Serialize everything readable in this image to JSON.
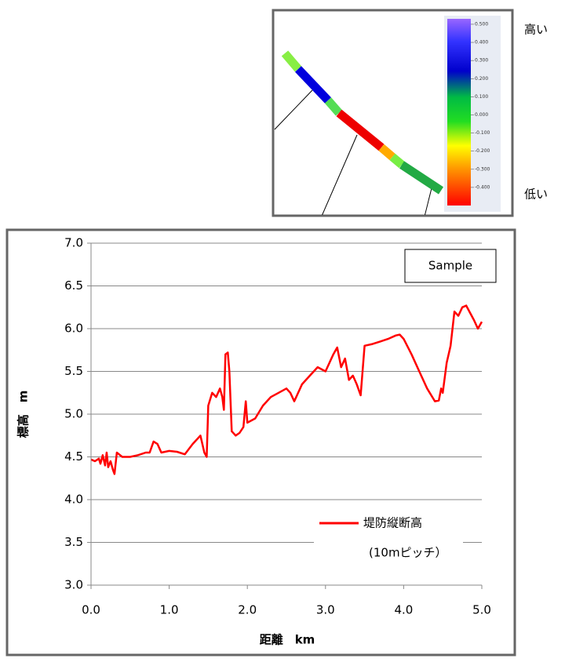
{
  "chart_data": {
    "type": "line",
    "ylabel": "標高　m",
    "xlabel": "距離　km",
    "legend_box": "Sample",
    "legend_note": "(10mピッチ）",
    "xlim": [
      0,
      5
    ],
    "ylim": [
      3,
      7
    ],
    "xticks": [
      {
        "value": 0,
        "label": "0.0"
      },
      {
        "value": 1,
        "label": "1.0"
      },
      {
        "value": 2,
        "label": "2.0"
      },
      {
        "value": 3,
        "label": "3.0"
      },
      {
        "value": 4,
        "label": "4.0"
      },
      {
        "value": 5,
        "label": "5.0"
      }
    ],
    "yticks": [
      {
        "value": 3,
        "label": "3.0"
      },
      {
        "value": 3.5,
        "label": "3.5"
      },
      {
        "value": 4,
        "label": "4.0"
      },
      {
        "value": 4.5,
        "label": "4.5"
      },
      {
        "value": 5,
        "label": "5.0"
      },
      {
        "value": 5.5,
        "label": "5.5"
      },
      {
        "value": 6,
        "label": "6.0"
      },
      {
        "value": 6.5,
        "label": "6.5"
      },
      {
        "value": 7,
        "label": "7.0"
      }
    ],
    "grid": true,
    "x": [
      0,
      0.05,
      0.1,
      0.12,
      0.15,
      0.18,
      0.2,
      0.22,
      0.25,
      0.28,
      0.3,
      0.33,
      0.4,
      0.5,
      0.6,
      0.7,
      0.75,
      0.8,
      0.85,
      0.9,
      1.0,
      1.1,
      1.2,
      1.3,
      1.4,
      1.45,
      1.48,
      1.5,
      1.55,
      1.6,
      1.65,
      1.68,
      1.7,
      1.72,
      1.75,
      1.77,
      1.8,
      1.85,
      1.9,
      1.95,
      1.98,
      2.0,
      2.1,
      2.2,
      2.3,
      2.4,
      2.5,
      2.55,
      2.6,
      2.7,
      2.8,
      2.9,
      3.0,
      3.1,
      3.15,
      3.2,
      3.25,
      3.3,
      3.35,
      3.4,
      3.45,
      3.5,
      3.6,
      3.7,
      3.8,
      3.9,
      3.95,
      4.0,
      4.1,
      4.2,
      4.3,
      4.4,
      4.45,
      4.48,
      4.5,
      4.55,
      4.6,
      4.65,
      4.7,
      4.75,
      4.8,
      4.9,
      4.95,
      5.0
    ],
    "series": [
      {
        "name": "堤防縦断高",
        "color": "#ff0000",
        "values": [
          4.47,
          4.45,
          4.48,
          4.42,
          4.52,
          4.4,
          4.55,
          4.38,
          4.45,
          4.35,
          4.3,
          4.55,
          4.5,
          4.5,
          4.52,
          4.55,
          4.55,
          4.68,
          4.65,
          4.55,
          4.57,
          4.56,
          4.53,
          4.65,
          4.75,
          4.55,
          4.5,
          5.1,
          5.25,
          5.2,
          5.3,
          5.2,
          5.05,
          5.7,
          5.72,
          5.5,
          4.8,
          4.75,
          4.78,
          4.85,
          5.15,
          4.9,
          4.95,
          5.1,
          5.2,
          5.25,
          5.3,
          5.25,
          5.15,
          5.35,
          5.45,
          5.55,
          5.5,
          5.7,
          5.78,
          5.55,
          5.65,
          5.4,
          5.45,
          5.35,
          5.22,
          5.8,
          5.82,
          5.85,
          5.88,
          5.92,
          5.93,
          5.88,
          5.7,
          5.5,
          5.3,
          5.15,
          5.16,
          5.3,
          5.25,
          5.6,
          5.8,
          6.2,
          6.15,
          6.25,
          6.27,
          6.1,
          6.0,
          6.08
        ]
      }
    ],
    "colorbar": {
      "high_label": "高い",
      "low_label": "低い",
      "clim": [
        -0.5,
        0.53
      ],
      "ticks": [
        {
          "value": 0.5,
          "label": "0.500"
        },
        {
          "value": 0.4,
          "label": "0.400"
        },
        {
          "value": 0.3,
          "label": "0.300"
        },
        {
          "value": 0.2,
          "label": "0.200"
        },
        {
          "value": 0.1,
          "label": "0.100"
        },
        {
          "value": 0,
          "label": "0.000"
        },
        {
          "value": -0.1,
          "label": "-0.100"
        },
        {
          "value": -0.2,
          "label": "-0.200"
        },
        {
          "value": -0.3,
          "label": "-0.300"
        },
        {
          "value": -0.4,
          "label": "-0.400"
        }
      ]
    }
  }
}
